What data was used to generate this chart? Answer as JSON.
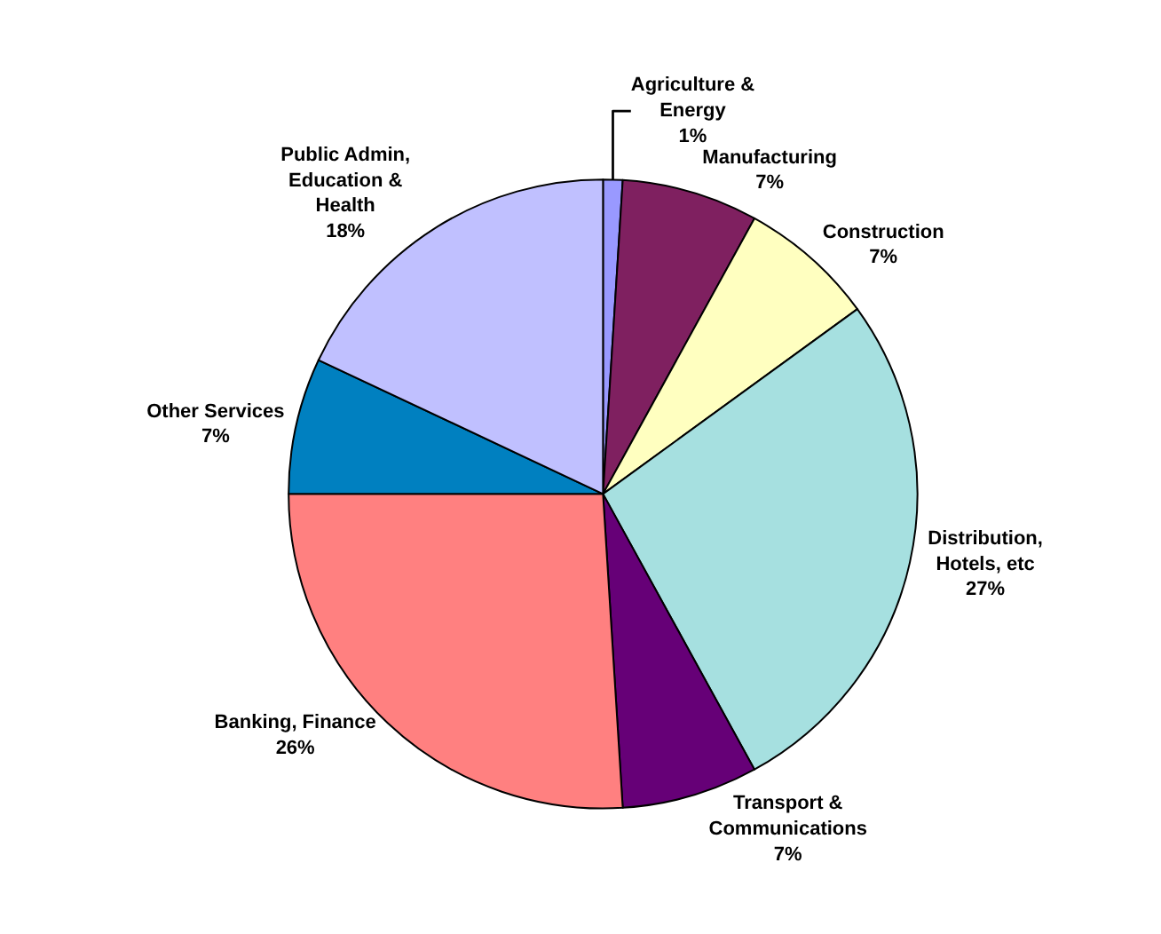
{
  "chart_data": {
    "type": "pie",
    "categories": [
      "Agriculture &\nEnergy",
      "Manufacturing",
      "Construction",
      "Distribution,\nHotels, etc",
      "Transport &\nCommunications",
      "Banking, Finance",
      "Other Services",
      "Public Admin,\nEducation &\nHealth"
    ],
    "values": [
      1,
      7,
      7,
      27,
      7,
      26,
      7,
      18
    ],
    "value_labels": [
      "1%",
      "7%",
      "7%",
      "27%",
      "7%",
      "26%",
      "7%",
      "18%"
    ],
    "colors": [
      "#9999ff",
      "#7f2060",
      "#ffffc0",
      "#a6e0e0",
      "#660077",
      "#ff8080",
      "#0080c0",
      "#c0c0ff"
    ],
    "legend": false
  }
}
